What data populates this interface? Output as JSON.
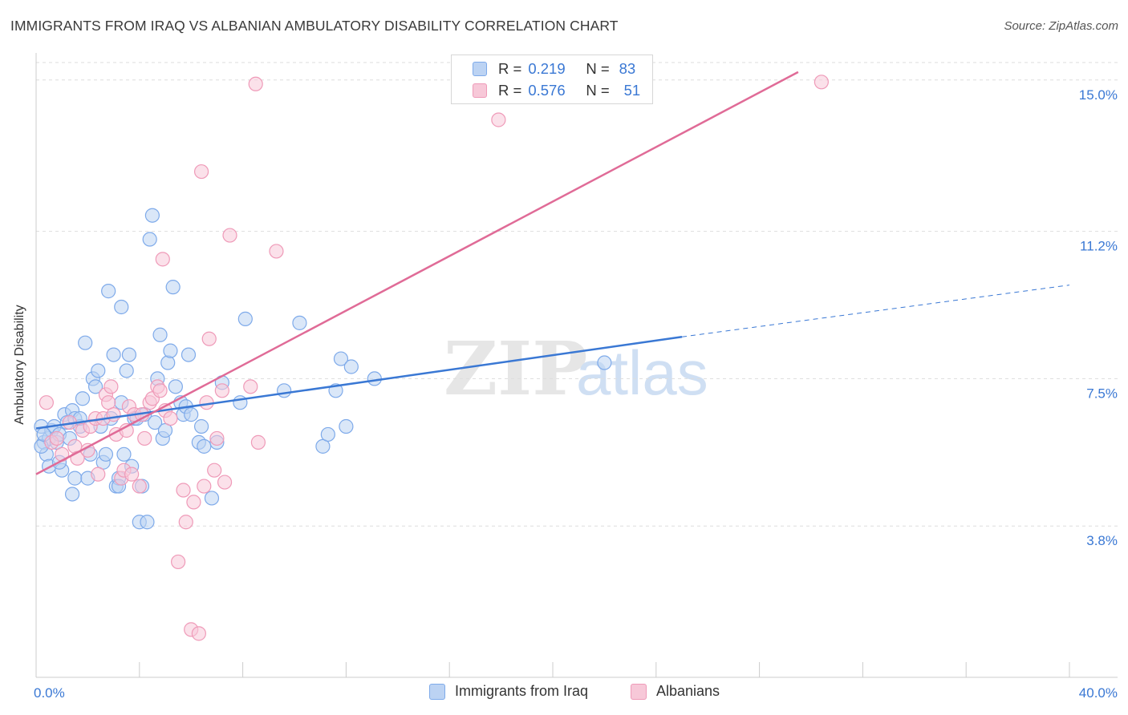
{
  "title": "IMMIGRANTS FROM IRAQ VS ALBANIAN AMBULATORY DISABILITY CORRELATION CHART",
  "source": "Source: ZipAtlas.com",
  "watermark": {
    "zip": "ZIP",
    "atlas": "atlas"
  },
  "colors": {
    "blue": "#3a78d4",
    "blue_fill": "#bcd3f3",
    "blue_stroke": "#7eaaea",
    "pink": "#e06b97",
    "pink_fill": "#f7c8d8",
    "pink_stroke": "#ef9ab8",
    "axis_label": "#3a78d4",
    "grid": "#dddddd"
  },
  "legend_top": {
    "rows": [
      {
        "r_label": "R =",
        "r_value": "0.219",
        "n_label": "N =",
        "n_value": "83"
      },
      {
        "r_label": "R =",
        "r_value": "0.576",
        "n_label": "N =",
        "n_value": "51"
      }
    ]
  },
  "legend_bottom": {
    "iraq": "Immigrants from Iraq",
    "albanians": "Albanians"
  },
  "chart_data": {
    "type": "scatter",
    "title": "IMMIGRANTS FROM IRAQ VS ALBANIAN AMBULATORY DISABILITY CORRELATION CHART",
    "xlabel": "",
    "ylabel": "Ambulatory Disability",
    "xlim": [
      0,
      40
    ],
    "ylim": [
      0,
      15.6
    ],
    "x_tick_labels": [
      "0.0%",
      "40.0%"
    ],
    "y_ticks": [
      3.8,
      7.5,
      11.2,
      15.0
    ],
    "y_tick_labels": [
      "3.8%",
      "7.5%",
      "11.2%",
      "15.0%"
    ],
    "series": [
      {
        "name": "Immigrants from Iraq",
        "r": 0.219,
        "n": 83,
        "trend": {
          "x0": 0.0,
          "y0": 6.25,
          "x1": 25.0,
          "y1": 8.55,
          "dash_to_x": 40.0,
          "dash_to_y": 9.85
        },
        "points": [
          [
            0.2,
            6.3
          ],
          [
            0.3,
            5.9
          ],
          [
            0.4,
            5.6
          ],
          [
            0.5,
            6.0
          ],
          [
            0.5,
            5.3
          ],
          [
            0.6,
            6.2
          ],
          [
            0.7,
            6.3
          ],
          [
            0.8,
            5.9
          ],
          [
            0.9,
            6.1
          ],
          [
            1.0,
            5.2
          ],
          [
            0.2,
            5.8
          ],
          [
            0.3,
            6.1
          ],
          [
            0.9,
            5.4
          ],
          [
            1.1,
            6.6
          ],
          [
            1.2,
            6.4
          ],
          [
            1.3,
            6.0
          ],
          [
            1.4,
            4.6
          ],
          [
            1.5,
            5.0
          ],
          [
            1.4,
            6.7
          ],
          [
            1.5,
            6.5
          ],
          [
            1.7,
            6.3
          ],
          [
            1.7,
            6.5
          ],
          [
            1.8,
            7.0
          ],
          [
            1.9,
            8.4
          ],
          [
            2.0,
            5.0
          ],
          [
            2.1,
            5.6
          ],
          [
            2.2,
            7.5
          ],
          [
            2.3,
            7.3
          ],
          [
            2.4,
            7.7
          ],
          [
            2.5,
            6.3
          ],
          [
            2.6,
            5.4
          ],
          [
            2.7,
            5.6
          ],
          [
            2.8,
            9.7
          ],
          [
            2.9,
            6.5
          ],
          [
            3.0,
            8.1
          ],
          [
            3.1,
            4.8
          ],
          [
            3.2,
            5.0
          ],
          [
            3.2,
            4.8
          ],
          [
            3.3,
            6.9
          ],
          [
            3.3,
            9.3
          ],
          [
            3.4,
            5.6
          ],
          [
            3.5,
            7.7
          ],
          [
            3.6,
            8.1
          ],
          [
            3.7,
            5.3
          ],
          [
            3.8,
            6.5
          ],
          [
            3.9,
            6.5
          ],
          [
            4.0,
            3.9
          ],
          [
            4.1,
            4.8
          ],
          [
            4.2,
            6.6
          ],
          [
            4.3,
            3.9
          ],
          [
            4.4,
            11.0
          ],
          [
            4.5,
            11.6
          ],
          [
            4.6,
            6.4
          ],
          [
            4.7,
            7.5
          ],
          [
            4.8,
            8.6
          ],
          [
            4.9,
            6.0
          ],
          [
            5.0,
            6.2
          ],
          [
            5.1,
            7.9
          ],
          [
            5.2,
            8.2
          ],
          [
            5.3,
            9.8
          ],
          [
            5.4,
            7.3
          ],
          [
            5.6,
            6.9
          ],
          [
            5.7,
            6.6
          ],
          [
            5.8,
            6.8
          ],
          [
            5.9,
            8.1
          ],
          [
            6.0,
            6.6
          ],
          [
            6.3,
            5.9
          ],
          [
            6.4,
            6.3
          ],
          [
            6.5,
            5.8
          ],
          [
            6.8,
            4.5
          ],
          [
            7.2,
            7.4
          ],
          [
            7.0,
            5.9
          ],
          [
            8.1,
            9.0
          ],
          [
            7.9,
            6.9
          ],
          [
            9.6,
            7.2
          ],
          [
            10.2,
            8.9
          ],
          [
            11.1,
            5.8
          ],
          [
            11.3,
            6.1
          ],
          [
            11.6,
            7.2
          ],
          [
            12.0,
            6.3
          ],
          [
            11.8,
            8.0
          ],
          [
            12.2,
            7.8
          ],
          [
            13.1,
            7.5
          ]
        ],
        "extra_points": [
          [
            22.0,
            7.9
          ]
        ]
      },
      {
        "name": "Albanians",
        "r": 0.576,
        "n": 51,
        "trend": {
          "x0": 0.0,
          "y0": 5.1,
          "x1": 29.5,
          "y1": 15.2
        },
        "points": [
          [
            0.4,
            6.9
          ],
          [
            0.6,
            5.9
          ],
          [
            0.8,
            6.0
          ],
          [
            1.0,
            5.6
          ],
          [
            1.3,
            6.4
          ],
          [
            1.5,
            5.8
          ],
          [
            1.6,
            5.5
          ],
          [
            1.8,
            6.2
          ],
          [
            2.0,
            5.7
          ],
          [
            2.1,
            6.3
          ],
          [
            2.3,
            6.5
          ],
          [
            2.4,
            5.1
          ],
          [
            2.6,
            6.5
          ],
          [
            2.7,
            7.1
          ],
          [
            2.8,
            6.9
          ],
          [
            2.9,
            7.3
          ],
          [
            3.0,
            6.6
          ],
          [
            3.1,
            6.1
          ],
          [
            3.3,
            5.0
          ],
          [
            3.4,
            5.2
          ],
          [
            3.5,
            6.2
          ],
          [
            3.6,
            6.8
          ],
          [
            3.7,
            5.1
          ],
          [
            3.8,
            6.6
          ],
          [
            4.0,
            4.8
          ],
          [
            4.1,
            6.6
          ],
          [
            4.2,
            6.0
          ],
          [
            4.4,
            6.9
          ],
          [
            4.5,
            7.0
          ],
          [
            4.7,
            7.3
          ],
          [
            4.8,
            7.2
          ],
          [
            4.9,
            10.5
          ],
          [
            5.0,
            6.7
          ],
          [
            5.2,
            6.5
          ],
          [
            5.5,
            2.9
          ],
          [
            5.7,
            4.7
          ],
          [
            5.8,
            3.9
          ],
          [
            6.0,
            1.2
          ],
          [
            6.1,
            4.4
          ],
          [
            6.3,
            1.1
          ],
          [
            6.5,
            4.8
          ],
          [
            6.6,
            6.9
          ],
          [
            6.9,
            5.2
          ],
          [
            7.0,
            6.0
          ],
          [
            7.5,
            11.1
          ],
          [
            7.3,
            4.9
          ],
          [
            8.3,
            7.3
          ],
          [
            8.6,
            5.9
          ],
          [
            9.3,
            10.7
          ],
          [
            6.7,
            8.5
          ],
          [
            6.4,
            12.7
          ]
        ],
        "extra_points": [
          [
            7.2,
            7.2
          ],
          [
            8.5,
            14.9
          ],
          [
            17.9,
            14.0
          ],
          [
            30.4,
            14.95
          ]
        ]
      }
    ]
  }
}
